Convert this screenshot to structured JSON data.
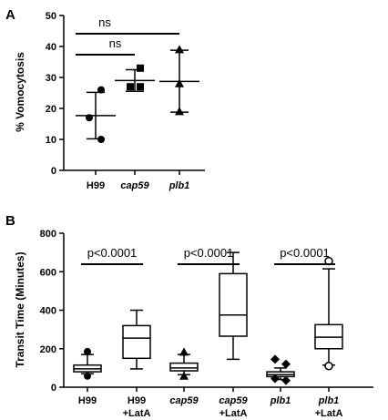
{
  "chart_data": [
    {
      "panel": "A",
      "type": "scatter",
      "ylabel": "% Vomocytosis",
      "ylim": [
        0,
        50
      ],
      "yticks": [
        0,
        10,
        20,
        30,
        40,
        50
      ],
      "categories": [
        {
          "label": "H99",
          "italic": false,
          "marker": "circle",
          "points": [
            26,
            17,
            10
          ],
          "mean": 17.7,
          "err_low": 10.2,
          "err_high": 25.2
        },
        {
          "label": "cap59",
          "italic": true,
          "marker": "square",
          "points": [
            33,
            27,
            27
          ],
          "mean": 29,
          "err_low": 25.5,
          "err_high": 32.5
        },
        {
          "label": "plb1",
          "italic": true,
          "marker": "triangle",
          "points": [
            39,
            28,
            19
          ],
          "mean": 28.7,
          "err_low": 18.8,
          "err_high": 38.8
        }
      ],
      "comparisons": [
        {
          "from": 0,
          "to": 1,
          "label": "ns"
        },
        {
          "from": 0,
          "to": 2,
          "label": "ns"
        }
      ]
    },
    {
      "panel": "B",
      "type": "box",
      "ylabel": "Transit Time (Minutes)",
      "ylim": [
        0,
        800
      ],
      "yticks": [
        0,
        200,
        400,
        600,
        800
      ],
      "categories": [
        {
          "label": "H99",
          "label2": "",
          "italic": false,
          "whisker_low": 70,
          "q1": 80,
          "median": 95,
          "q3": 115,
          "whisker_high": 170,
          "outliers": [
            {
              "marker": "circle",
              "values": [
                185,
                58
              ]
            }
          ]
        },
        {
          "label": "H99",
          "label2": "+LatA",
          "italic": false,
          "whisker_low": 95,
          "q1": 150,
          "median": 255,
          "q3": 320,
          "whisker_high": 400,
          "outliers": []
        },
        {
          "label": "cap59",
          "label2": "",
          "italic": true,
          "whisker_low": 65,
          "q1": 85,
          "median": 100,
          "q3": 125,
          "whisker_high": 170,
          "outliers": [
            {
              "marker": "triangle",
              "values": [
                183,
                58
              ]
            }
          ]
        },
        {
          "label": "cap59",
          "label2": "+LatA",
          "italic": true,
          "whisker_low": 145,
          "q1": 265,
          "median": 375,
          "q3": 590,
          "whisker_high": 700,
          "outliers": []
        },
        {
          "label": "plb1",
          "label2": "",
          "italic": true,
          "whisker_low": 40,
          "q1": 55,
          "median": 65,
          "q3": 80,
          "whisker_high": 100,
          "outliers": [
            {
              "marker": "diamond",
              "values": [
                145,
                120,
                45,
                35
              ]
            }
          ]
        },
        {
          "label": "plb1",
          "label2": "+LatA",
          "italic": true,
          "whisker_low": 115,
          "q1": 200,
          "median": 260,
          "q3": 325,
          "whisker_high": 615,
          "outliers": [
            {
              "marker": "open-circle",
              "values": [
                655,
                110
              ]
            }
          ]
        }
      ],
      "comparisons": [
        {
          "from": 0,
          "to": 1,
          "label": "p<0.0001"
        },
        {
          "from": 2,
          "to": 3,
          "label": "p<0.0001"
        },
        {
          "from": 4,
          "to": 5,
          "label": "p<0.0001"
        }
      ]
    }
  ]
}
